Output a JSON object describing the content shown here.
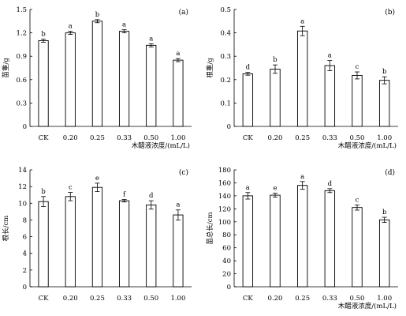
{
  "chart_data": [
    {
      "type": "bar",
      "panel_label": "(a)",
      "ylabel": "苗重/g",
      "xlabel": "木醋液浓度/(mL/L)",
      "categories": [
        "CK",
        "0.20",
        "0.25",
        "0.33",
        "0.50",
        "1.00"
      ],
      "values": [
        1.1,
        1.2,
        1.35,
        1.22,
        1.04,
        0.85
      ],
      "errors": [
        0.02,
        0.02,
        0.02,
        0.02,
        0.02,
        0.02
      ],
      "significance": [
        "b",
        "a",
        "b",
        "a",
        "a",
        "a"
      ],
      "ylim": [
        0,
        1.5
      ],
      "yticks": [
        "0",
        "0.3",
        "0.6",
        "0.9",
        "1.2",
        "1.5"
      ],
      "ytick_values": [
        0,
        0.3,
        0.6,
        0.9,
        1.2,
        1.5
      ]
    },
    {
      "type": "bar",
      "panel_label": "(b)",
      "ylabel": "根重/g",
      "xlabel": "木醋液浓度/(mL/L)",
      "categories": [
        "CK",
        "0.20",
        "0.25",
        "0.33",
        "0.50",
        "1.00"
      ],
      "values": [
        0.225,
        0.245,
        0.408,
        0.26,
        0.218,
        0.197
      ],
      "errors": [
        0.006,
        0.018,
        0.02,
        0.022,
        0.015,
        0.015
      ],
      "significance": [
        "d",
        "b",
        "a",
        "a",
        "c",
        "b"
      ],
      "ylim": [
        0,
        0.5
      ],
      "yticks": [
        "0",
        "0.1",
        "0.2",
        "0.3",
        "0.4",
        "0.5"
      ],
      "ytick_values": [
        0,
        0.1,
        0.2,
        0.3,
        0.4,
        0.5
      ]
    },
    {
      "type": "bar",
      "panel_label": "(c)",
      "ylabel": "根长/cm",
      "xlabel": "",
      "categories": [
        "CK",
        "0.20",
        "0.25",
        "0.33",
        "0.50",
        "1.00"
      ],
      "values": [
        10.2,
        10.8,
        11.9,
        10.3,
        9.8,
        8.6
      ],
      "errors": [
        0.6,
        0.5,
        0.5,
        0.15,
        0.5,
        0.6
      ],
      "significance": [
        "b",
        "c",
        "e",
        "f",
        "d",
        "a"
      ],
      "ylim": [
        0,
        14
      ],
      "yticks": [
        "0",
        "2",
        "4",
        "6",
        "8",
        "10",
        "12",
        "14"
      ],
      "ytick_values": [
        0,
        2,
        4,
        6,
        8,
        10,
        12,
        14
      ]
    },
    {
      "type": "bar",
      "panel_label": "(d)",
      "ylabel": "苗总长/cm",
      "xlabel": "木醋液浓度/(mL/L)",
      "categories": [
        "CK",
        "0.20",
        "0.25",
        "0.33",
        "0.50",
        "1.00"
      ],
      "values": [
        140,
        141,
        156,
        148,
        122,
        103
      ],
      "errors": [
        5,
        3,
        6,
        3,
        4,
        4
      ],
      "significance": [
        "a",
        "e",
        "a",
        "d",
        "c",
        "b"
      ],
      "ylim": [
        0,
        180
      ],
      "yticks": [
        "0",
        "20",
        "40",
        "60",
        "80",
        "100",
        "120",
        "140",
        "160",
        "180"
      ],
      "ytick_values": [
        0,
        20,
        40,
        60,
        80,
        100,
        120,
        140,
        160,
        180
      ]
    }
  ]
}
